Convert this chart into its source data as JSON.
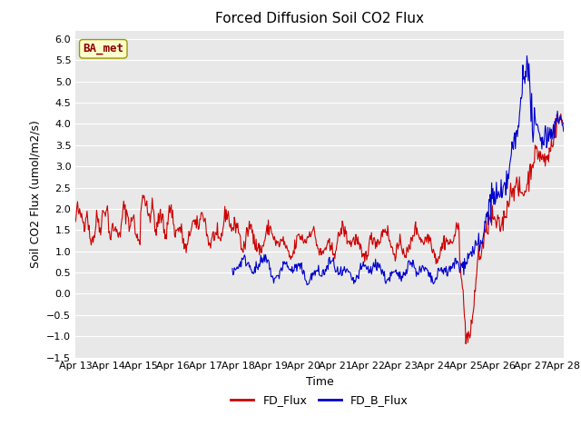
{
  "title": "Forced Diffusion Soil CO2 Flux",
  "xlabel": "Time",
  "ylabel": "Soil CO2 Flux (umol/m2/s)",
  "ylim": [
    -1.5,
    6.2
  ],
  "yticks": [
    -1.5,
    -1.0,
    -0.5,
    0.0,
    0.5,
    1.0,
    1.5,
    2.0,
    2.5,
    3.0,
    3.5,
    4.0,
    4.5,
    5.0,
    5.5,
    6.0
  ],
  "x_labels": [
    "Apr 13",
    "Apr 14",
    "Apr 15",
    "Apr 16",
    "Apr 17",
    "Apr 18",
    "Apr 19",
    "Apr 20",
    "Apr 21",
    "Apr 22",
    "Apr 23",
    "Apr 24",
    "Apr 25",
    "Apr 26",
    "Apr 27",
    "Apr 28"
  ],
  "fd_flux_color": "#cc0000",
  "fd_b_flux_color": "#0000cc",
  "fig_bg_color": "#ffffff",
  "plot_bg_color": "#e8e8e8",
  "grid_color": "#ffffff",
  "annotation_text": "BA_met",
  "annotation_bg": "#ffffcc",
  "annotation_fg": "#8b0000",
  "annotation_border": "#999900",
  "legend_labels": [
    "FD_Flux",
    "FD_B_Flux"
  ],
  "title_fontsize": 11,
  "axis_label_fontsize": 9,
  "tick_fontsize": 8,
  "legend_fontsize": 9,
  "annotation_fontsize": 9,
  "line_width": 0.8,
  "n_days": 15,
  "seed": 42
}
